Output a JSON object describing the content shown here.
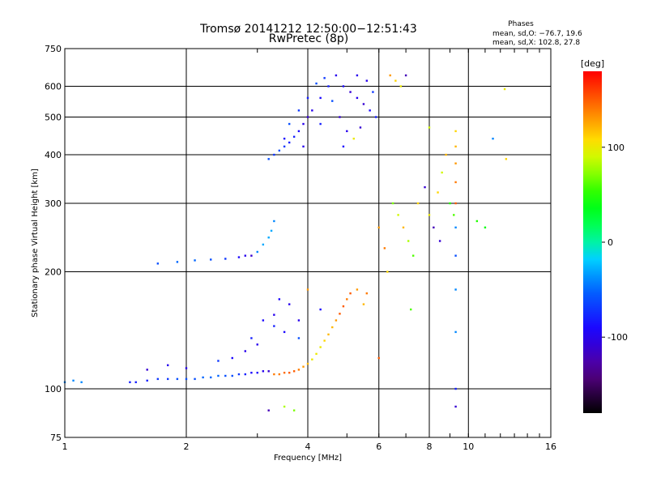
{
  "chart_data": {
    "type": "scatter",
    "title": "Tromsø 20141212 12:50:00−12:51:43",
    "subtitle": "RwPretec (8p)",
    "xlabel": "Frequency [MHz]",
    "ylabel": "Stationary phase Virtual Height [km]",
    "x_scale": "log",
    "y_scale": "log",
    "xlim": [
      1,
      16
    ],
    "ylim": [
      75,
      750
    ],
    "x_ticks": [
      1,
      2,
      4,
      6,
      8,
      10,
      16
    ],
    "y_ticks": [
      75,
      100,
      200,
      300,
      400,
      500,
      600,
      750
    ],
    "grid": true,
    "phase_stats": {
      "title": "Phases",
      "o_line": "mean, sd,O: −76.7, 19.6",
      "x_line": "mean, sd,X: 102.8, 27.8"
    },
    "colorbar": {
      "label": "[deg]",
      "ticks": [
        100,
        0,
        -100
      ],
      "range": [
        -180,
        180
      ]
    },
    "series": [
      {
        "description_points": [
          [
            1.0,
            104,
            -40
          ],
          [
            1.05,
            105,
            -40
          ],
          [
            1.1,
            104,
            -40
          ],
          [
            1.45,
            104,
            -80
          ],
          [
            1.5,
            104,
            -80
          ],
          [
            1.6,
            105,
            -80
          ],
          [
            1.7,
            106,
            -70
          ],
          [
            1.8,
            106,
            -70
          ],
          [
            1.9,
            106,
            -60
          ],
          [
            2.0,
            106,
            -60
          ],
          [
            2.1,
            106,
            -60
          ],
          [
            2.2,
            107,
            -50
          ],
          [
            2.3,
            107,
            -50
          ],
          [
            2.4,
            108,
            -50
          ],
          [
            2.5,
            108,
            -60
          ],
          [
            2.6,
            108,
            -60
          ],
          [
            2.7,
            109,
            -70
          ],
          [
            2.8,
            109,
            -80
          ],
          [
            2.9,
            110,
            -90
          ],
          [
            3.0,
            110,
            -90
          ],
          [
            3.1,
            111,
            -100
          ],
          [
            3.2,
            111,
            -110
          ],
          [
            3.3,
            109,
            140
          ],
          [
            3.4,
            109,
            140
          ],
          [
            3.5,
            110,
            145
          ],
          [
            3.6,
            110,
            150
          ],
          [
            3.7,
            111,
            150
          ],
          [
            3.8,
            112,
            140
          ],
          [
            3.9,
            114,
            130
          ],
          [
            4.0,
            116,
            120
          ],
          [
            4.1,
            119,
            100
          ],
          [
            4.2,
            123,
            100
          ],
          [
            4.3,
            128,
            100
          ],
          [
            4.4,
            133,
            110
          ],
          [
            4.5,
            138,
            120
          ],
          [
            4.6,
            144,
            120
          ],
          [
            4.7,
            150,
            130
          ],
          [
            4.8,
            156,
            150
          ],
          [
            4.9,
            163,
            150
          ],
          [
            5.0,
            170,
            140
          ],
          [
            5.1,
            176,
            150
          ],
          [
            5.3,
            180,
            130
          ],
          [
            5.6,
            176,
            140
          ],
          [
            5.5,
            165,
            120
          ],
          [
            4.3,
            160,
            -90
          ],
          [
            4.0,
            180,
            130
          ],
          [
            3.8,
            150,
            -100
          ],
          [
            3.5,
            140,
            -90
          ],
          [
            3.3,
            145,
            -80
          ],
          [
            3.0,
            130,
            -100
          ],
          [
            2.8,
            125,
            -100
          ],
          [
            2.6,
            120,
            -90
          ],
          [
            2.4,
            118,
            -70
          ],
          [
            1.8,
            115,
            -100
          ],
          [
            1.6,
            112,
            -110
          ],
          [
            2.0,
            113,
            -100
          ],
          [
            3.4,
            170,
            -90
          ],
          [
            3.6,
            165,
            -100
          ],
          [
            3.3,
            155,
            -100
          ],
          [
            3.1,
            150,
            -90
          ],
          [
            2.9,
            135,
            -80
          ],
          [
            3.8,
            135,
            -60
          ]
        ]
      },
      {
        "description_points": [
          [
            1.7,
            210,
            -60
          ],
          [
            1.9,
            212,
            -50
          ],
          [
            2.1,
            214,
            -50
          ],
          [
            2.3,
            215,
            -60
          ],
          [
            2.5,
            216,
            -70
          ],
          [
            2.7,
            218,
            -90
          ],
          [
            2.8,
            220,
            -100
          ],
          [
            2.9,
            220,
            -110
          ],
          [
            3.0,
            225,
            -40
          ],
          [
            3.1,
            235,
            -30
          ],
          [
            3.2,
            245,
            -30
          ],
          [
            3.25,
            255,
            -30
          ],
          [
            3.3,
            270,
            -40
          ]
        ]
      },
      {
        "description_points": [
          [
            3.2,
            390,
            -60
          ],
          [
            3.3,
            400,
            -70
          ],
          [
            3.4,
            410,
            -60
          ],
          [
            3.5,
            420,
            -70
          ],
          [
            3.6,
            430,
            -80
          ],
          [
            3.7,
            445,
            -80
          ],
          [
            3.8,
            460,
            -90
          ],
          [
            3.9,
            480,
            -100
          ],
          [
            4.0,
            500,
            -110
          ],
          [
            4.1,
            520,
            -100
          ],
          [
            4.3,
            560,
            -90
          ],
          [
            4.5,
            600,
            -80
          ],
          [
            4.7,
            640,
            -100
          ],
          [
            4.9,
            600,
            -90
          ],
          [
            5.1,
            580,
            -110
          ],
          [
            5.3,
            560,
            -100
          ],
          [
            5.5,
            540,
            -110
          ],
          [
            5.7,
            520,
            -90
          ],
          [
            5.9,
            500,
            -80
          ],
          [
            3.6,
            480,
            -60
          ],
          [
            3.8,
            520,
            -70
          ],
          [
            4.0,
            560,
            -80
          ],
          [
            4.2,
            610,
            -60
          ],
          [
            4.4,
            630,
            -70
          ],
          [
            4.6,
            550,
            -60
          ],
          [
            4.8,
            500,
            -110
          ],
          [
            5.0,
            460,
            -100
          ],
          [
            5.2,
            440,
            100
          ],
          [
            5.4,
            470,
            -110
          ],
          [
            5.6,
            620,
            -100
          ],
          [
            5.8,
            580,
            -70
          ],
          [
            3.5,
            440,
            -90
          ],
          [
            3.9,
            420,
            -100
          ],
          [
            4.3,
            480,
            -80
          ],
          [
            4.9,
            420,
            -90
          ],
          [
            5.3,
            640,
            -100
          ]
        ]
      },
      {
        "description_points": [
          [
            6.4,
            640,
            130
          ],
          [
            6.6,
            620,
            110
          ],
          [
            6.8,
            600,
            100
          ],
          [
            7.0,
            640,
            -120
          ],
          [
            6.5,
            300,
            70
          ],
          [
            6.7,
            280,
            90
          ],
          [
            6.9,
            260,
            120
          ],
          [
            7.1,
            240,
            80
          ],
          [
            7.3,
            220,
            60
          ],
          [
            7.5,
            300,
            110
          ],
          [
            7.8,
            330,
            -110
          ],
          [
            8.0,
            280,
            100
          ],
          [
            8.2,
            260,
            -120
          ],
          [
            8.4,
            320,
            110
          ],
          [
            8.6,
            360,
            90
          ],
          [
            8.8,
            400,
            120
          ],
          [
            9.0,
            300,
            50
          ],
          [
            9.2,
            280,
            60
          ],
          [
            8.5,
            240,
            -110
          ],
          [
            9.3,
            460,
            110
          ],
          [
            9.3,
            420,
            120
          ],
          [
            9.3,
            380,
            130
          ],
          [
            9.3,
            340,
            140
          ],
          [
            9.3,
            300,
            150
          ],
          [
            9.3,
            260,
            -40
          ],
          [
            9.3,
            220,
            -60
          ],
          [
            9.3,
            180,
            -40
          ],
          [
            9.3,
            140,
            -40
          ],
          [
            9.3,
            100,
            -80
          ],
          [
            9.3,
            90,
            -110
          ],
          [
            10.5,
            270,
            50
          ],
          [
            11.0,
            260,
            40
          ],
          [
            11.5,
            440,
            -40
          ],
          [
            12.3,
            590,
            100
          ],
          [
            12.4,
            390,
            110
          ],
          [
            7.2,
            160,
            60
          ],
          [
            6.0,
            260,
            130
          ],
          [
            6.2,
            230,
            140
          ],
          [
            6.0,
            120,
            150
          ],
          [
            6.3,
            200,
            110
          ],
          [
            8.0,
            470,
            90
          ],
          [
            3.7,
            88,
            70
          ],
          [
            3.5,
            90,
            80
          ],
          [
            3.2,
            88,
            -120
          ]
        ]
      }
    ]
  }
}
